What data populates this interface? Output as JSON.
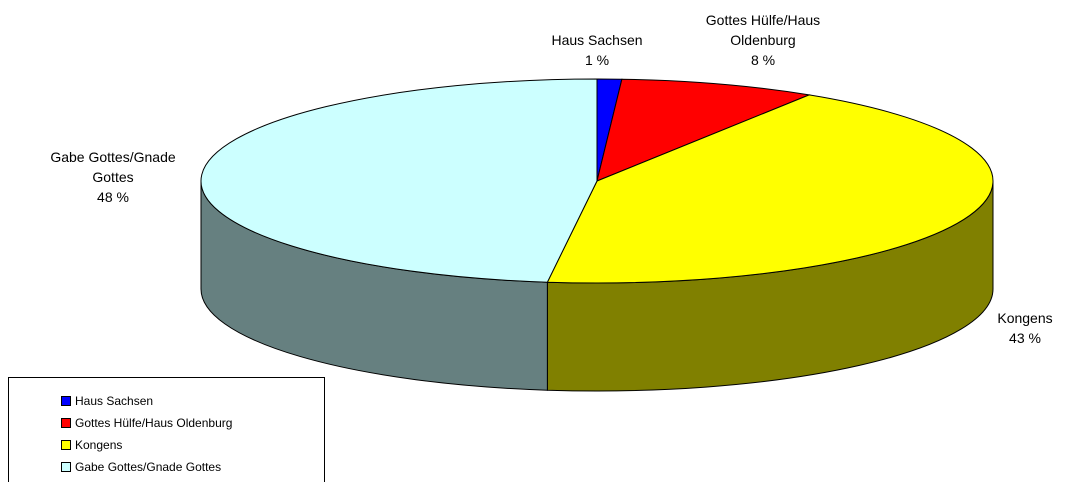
{
  "chart_data": {
    "type": "pie3d",
    "categories": [
      "Haus Sachsen",
      "Gottes Hülfe/Haus Oldenburg",
      "Kongens",
      "Gabe Gottes/Gnade Gottes"
    ],
    "values": [
      1,
      8,
      43,
      48
    ],
    "value_labels": [
      "1 %",
      "8 %",
      "43 %",
      "48 %"
    ],
    "colors": [
      "#0000ff",
      "#ff0000",
      "#ffff00",
      "#ccffff"
    ],
    "legend": "bottom-left"
  }
}
